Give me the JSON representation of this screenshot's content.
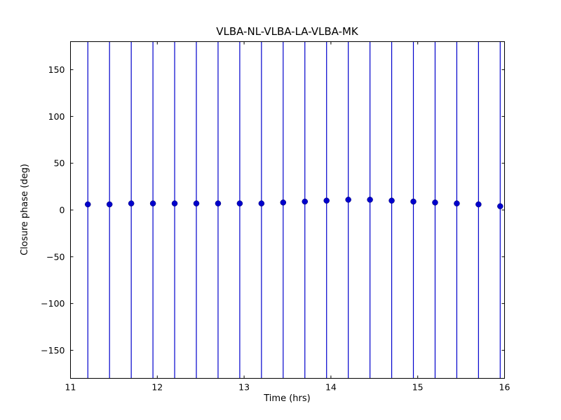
{
  "figure": {
    "background": "#ffffff",
    "frame_color": "#000000"
  },
  "chart_data": {
    "type": "scatter",
    "title": "VLBA-NL-VLBA-LA-VLBA-MK",
    "xlabel": "Time (hrs)",
    "ylabel": "Closure phase (deg)",
    "xlim": [
      11,
      16
    ],
    "ylim": [
      -180,
      180
    ],
    "xticks": [
      11,
      12,
      13,
      14,
      15,
      16
    ],
    "yticks": [
      -150,
      -100,
      -50,
      0,
      50,
      100,
      150
    ],
    "grid": false,
    "legend": "none",
    "marker": "circle",
    "marker_color": "#0000cc",
    "marker_edge_color": "#000066",
    "errorbar_color": "#0000cc",
    "errorbars": "vertical lines spanning full plot height (clipped at axes frame)",
    "x": [
      11.2,
      11.45,
      11.7,
      11.95,
      12.2,
      12.45,
      12.7,
      12.95,
      13.2,
      13.45,
      13.7,
      13.95,
      14.2,
      14.45,
      14.7,
      14.95,
      15.2,
      15.45,
      15.7,
      15.95
    ],
    "y": [
      6,
      6,
      7,
      7,
      7,
      7,
      7,
      7,
      7,
      8,
      9,
      10,
      11,
      11,
      10,
      9,
      8,
      7,
      6,
      4
    ]
  }
}
